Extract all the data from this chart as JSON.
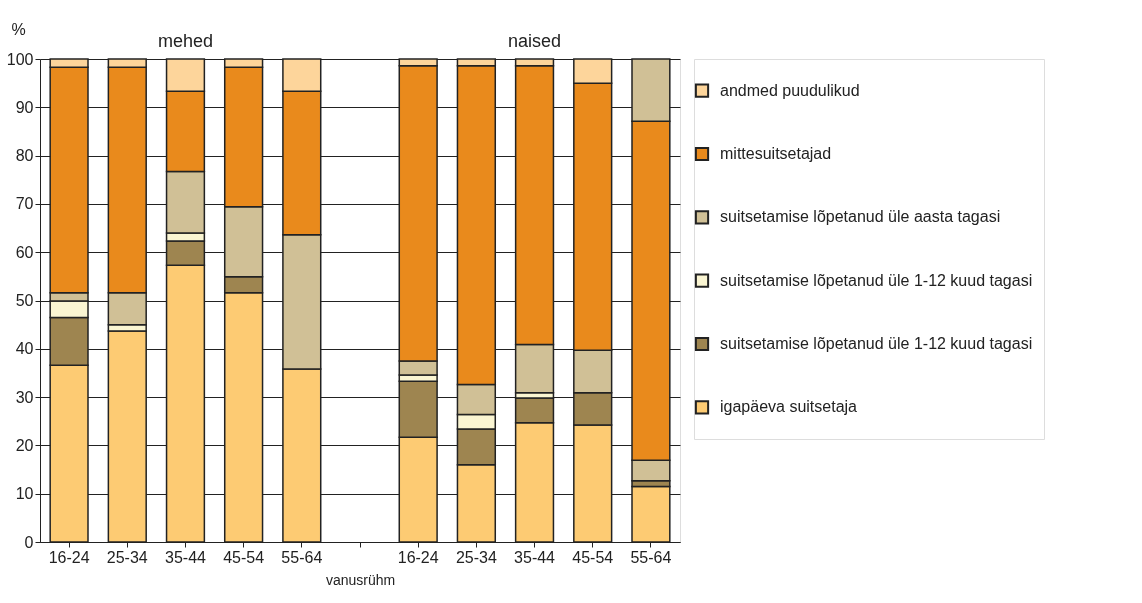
{
  "chart_data": {
    "type": "bar",
    "stacked": true,
    "ylabel": "%",
    "xlabel": "vanusrühm",
    "annotations": [
      "mehed",
      "naised"
    ],
    "categories": [
      "16-24",
      "25-34",
      "35-44",
      "45-54",
      "55-64",
      null,
      "16-24",
      "25-34",
      "35-44",
      "45-54",
      "55-64"
    ],
    "series": [
      {
        "name": "igapäeva suitsetaja",
        "color": "#fdcb73",
        "values": [
          36.6,
          43.7,
          57.3,
          51.6,
          35.8,
          null,
          21.7,
          16.0,
          24.7,
          24.2,
          11.5
        ]
      },
      {
        "name": "suitsetamise lõpetanud üle 1-12 kuud tagasi",
        "color": "#9e8550",
        "values": [
          9.9,
          0,
          5.0,
          3.3,
          0,
          null,
          11.6,
          7.4,
          5.1,
          6.7,
          1.2
        ]
      },
      {
        "name": "suitsetamise lõpetanud üle 1-12 kuud tagasi",
        "color": "#faf5d2",
        "values": [
          3.4,
          1.3,
          1.7,
          0,
          0,
          null,
          1.3,
          3.0,
          1.1,
          0,
          0
        ]
      },
      {
        "name": "suitsetamise lõpetanud üle aasta tagasi",
        "color": "#d0c096",
        "values": [
          1.7,
          6.6,
          12.7,
          14.5,
          27.8,
          null,
          2.9,
          6.2,
          10.0,
          8.8,
          4.2
        ]
      },
      {
        "name": "mittesuitsetajad",
        "color": "#e98a1c",
        "values": [
          46.7,
          46.7,
          16.6,
          28.9,
          29.7,
          null,
          61.1,
          66.0,
          57.7,
          55.3,
          70.2
        ]
      },
      {
        "name": "andmed puudulikud",
        "color": "#fdd59b",
        "colors": [
          "#fdd59b",
          "#fdd59b",
          "#fdd59b",
          "#fdd59b",
          "#fdd59b",
          null,
          "#fdd59b",
          "#fdd59b",
          "#fdd59b",
          "#fdd59b",
          "#d0c096"
        ],
        "values": [
          1.7,
          1.7,
          6.7,
          1.7,
          6.7,
          null,
          1.4,
          1.4,
          1.4,
          5.0,
          12.9
        ]
      }
    ],
    "ylim": [
      0,
      100
    ],
    "yticks": [
      0,
      10,
      20,
      30,
      40,
      50,
      60,
      70,
      80,
      90,
      100
    ],
    "grid": "y",
    "legend": "right"
  }
}
